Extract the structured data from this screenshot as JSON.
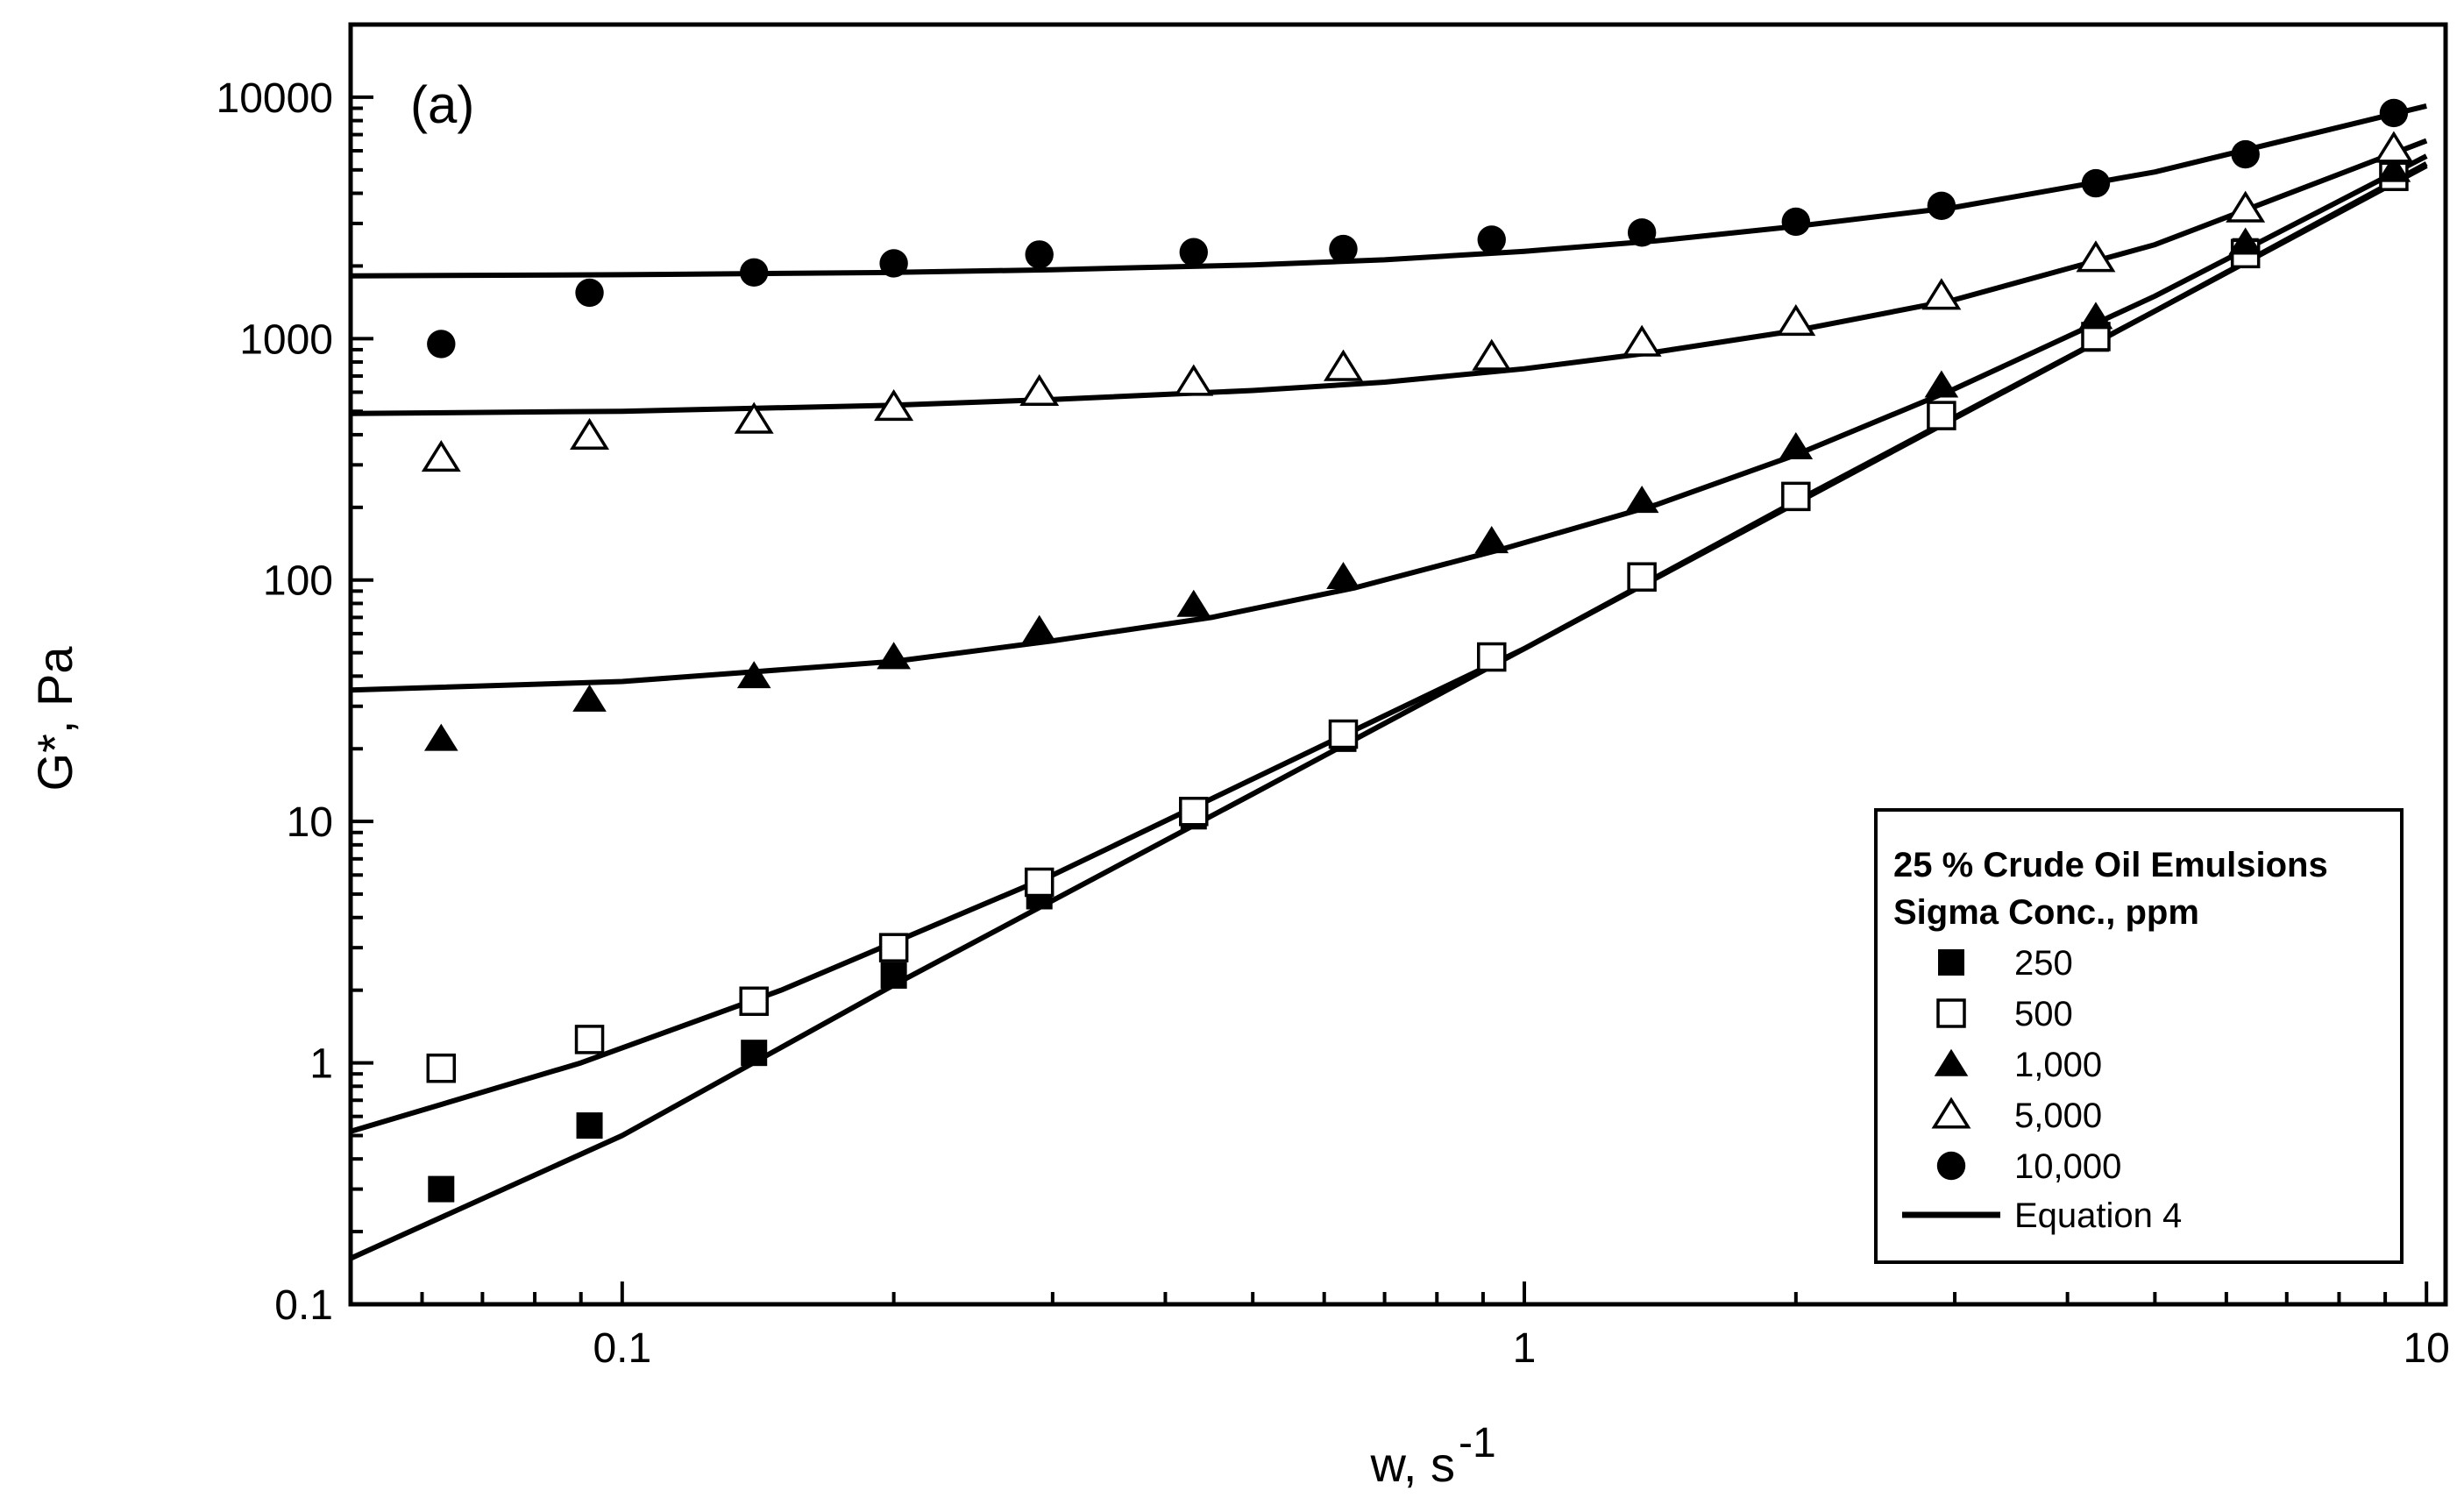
{
  "chart_data": {
    "type": "scatter",
    "panel_label": "(a)",
    "xlabel": "w, s",
    "xlabel_superscript": "-1",
    "ylabel": "G*, Pa",
    "xscale": "log",
    "yscale": "log",
    "xlim": [
      0.05,
      10.5
    ],
    "ylim": [
      0.1,
      20000
    ],
    "x_ticks": [
      {
        "value": 0.1,
        "label": "0.1"
      },
      {
        "value": 1,
        "label": "1"
      },
      {
        "value": 10,
        "label": "10"
      }
    ],
    "y_ticks": [
      {
        "value": 0.1,
        "label": "0.1"
      },
      {
        "value": 1,
        "label": "1"
      },
      {
        "value": 10,
        "label": "10"
      },
      {
        "value": 100,
        "label": "100"
      },
      {
        "value": 1000,
        "label": "1000"
      },
      {
        "value": 10000,
        "label": "10000"
      }
    ],
    "legend": {
      "title_line1": "25 % Crude Oil Emulsions",
      "title_line2": "Sigma Conc., ppm",
      "placement": "bottom-right",
      "fit_label": "Equation 4"
    },
    "x": [
      0.063,
      0.092,
      0.14,
      0.2,
      0.29,
      0.43,
      0.63,
      0.92,
      1.35,
      2.0,
      2.9,
      4.3,
      6.3,
      9.2
    ],
    "series": [
      {
        "name": "250",
        "marker": "square-filled",
        "values": [
          0.3,
          0.55,
          1.1,
          2.3,
          4.9,
          10.5,
          22,
          48,
          103,
          222,
          480,
          1000,
          2300,
          4700
        ]
      },
      {
        "name": "500",
        "marker": "square-open",
        "values": [
          0.95,
          1.25,
          1.8,
          3.0,
          5.6,
          11,
          23,
          48,
          103,
          222,
          480,
          1020,
          2250,
          4700
        ]
      },
      {
        "name": "1,000",
        "marker": "triangle-filled",
        "values": [
          22,
          32,
          40,
          48,
          62,
          79,
          103,
          145,
          213,
          355,
          640,
          1230,
          2500,
          5000
        ]
      },
      {
        "name": "5,000",
        "marker": "triangle-open",
        "values": [
          320,
          395,
          460,
          520,
          600,
          660,
          760,
          840,
          960,
          1170,
          1500,
          2150,
          3450,
          6100
        ]
      },
      {
        "name": "10,000",
        "marker": "circle-filled",
        "values": [
          950,
          1550,
          1880,
          2050,
          2230,
          2280,
          2350,
          2570,
          2750,
          3050,
          3550,
          4400,
          5800,
          8600
        ]
      }
    ],
    "fit_curves": [
      {
        "name": "250 fit",
        "x": [
          0.05,
          0.1,
          0.2,
          0.5,
          1,
          2,
          5,
          10
        ],
        "y": [
          0.155,
          0.5,
          2.1,
          13,
          52,
          208,
          1300,
          5200
        ]
      },
      {
        "name": "500 fit",
        "x": [
          0.05,
          0.09,
          0.15,
          0.3,
          0.5,
          1,
          2,
          5,
          10
        ],
        "y": [
          0.52,
          1.0,
          2.0,
          6.0,
          15,
          52,
          212,
          1300,
          5300
        ]
      },
      {
        "name": "1,000 fit",
        "x": [
          0.05,
          0.1,
          0.2,
          0.3,
          0.45,
          0.65,
          0.95,
          1.4,
          2,
          3,
          5,
          10
        ],
        "y": [
          35,
          38,
          46,
          56,
          70,
          93,
          135,
          205,
          330,
          620,
          1500,
          5700
        ]
      },
      {
        "name": "5,000 fit",
        "x": [
          0.05,
          0.1,
          0.2,
          0.3,
          0.5,
          0.7,
          1,
          1.4,
          2,
          3,
          5,
          10
        ],
        "y": [
          490,
          500,
          530,
          560,
          610,
          660,
          750,
          880,
          1080,
          1450,
          2450,
          6600
        ]
      },
      {
        "name": "10,000 fit",
        "x": [
          0.05,
          0.1,
          0.2,
          0.3,
          0.5,
          0.7,
          1,
          1.4,
          2,
          3,
          5,
          10
        ],
        "y": [
          1820,
          1840,
          1880,
          1930,
          2020,
          2120,
          2300,
          2540,
          2920,
          3500,
          4900,
          9200
        ]
      }
    ]
  }
}
